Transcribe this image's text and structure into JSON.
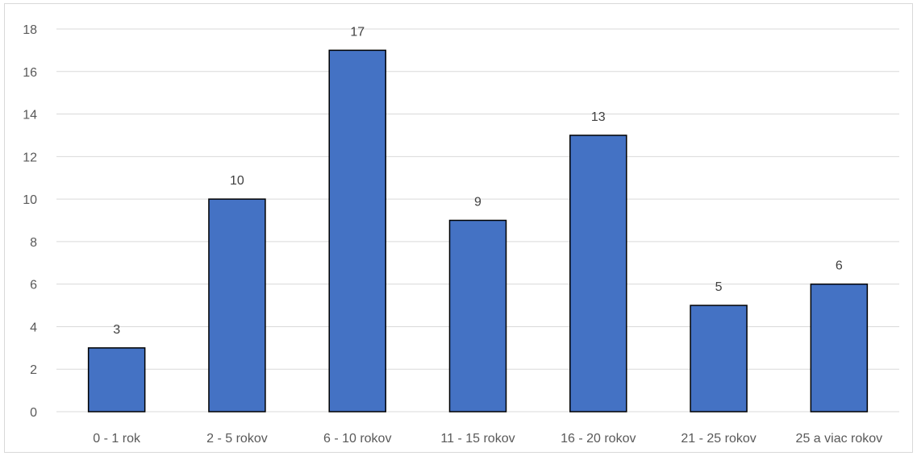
{
  "chart_data": {
    "type": "bar",
    "categories": [
      "0 - 1 rok",
      "2 - 5 rokov",
      "6 - 10 rokov",
      "11 - 15 rokov",
      "16 - 20 rokov",
      "21 - 25 rokov",
      "25 a viac rokov"
    ],
    "values": [
      3,
      10,
      17,
      9,
      13,
      5,
      6
    ],
    "y_ticks": [
      "0",
      "2",
      "4",
      "6",
      "8",
      "10",
      "12",
      "14",
      "16",
      "18"
    ],
    "ylim": [
      0,
      18
    ],
    "grid": true,
    "bar_color": "#4472c4",
    "title": "",
    "xlabel": "",
    "ylabel": ""
  }
}
